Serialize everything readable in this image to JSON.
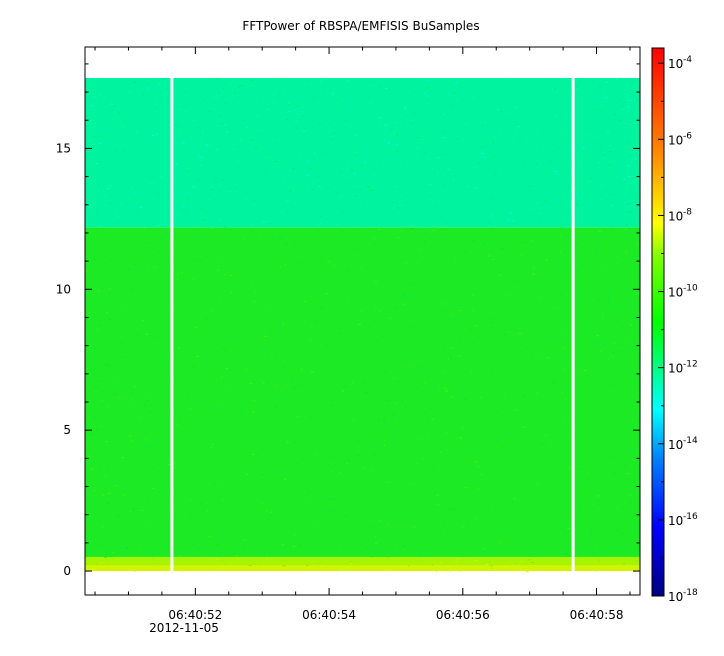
{
  "chart_data": {
    "type": "heatmap",
    "title": "FFTPower of RBSPA/EMFISIS  BuSamples",
    "x_axis": {
      "ticks": [
        "06:40:52",
        "06:40:54",
        "06:40:56",
        "06:40:58"
      ],
      "tick_seconds": [
        52,
        54,
        56,
        58
      ],
      "range_seconds": [
        50.35,
        58.65
      ],
      "date_label": "2012-11-05"
    },
    "y_axis": {
      "ticks": [
        "0",
        "5",
        "10",
        "15"
      ],
      "tick_values": [
        0,
        5,
        10,
        15
      ],
      "range": [
        -0.85,
        18.6
      ],
      "data_range": [
        0,
        17.5
      ]
    },
    "colorbar": {
      "scale": "log",
      "range_exponents": [
        -18,
        -3.6
      ],
      "ticks": [
        {
          "base": "10",
          "exp": "-4",
          "value": -4
        },
        {
          "base": "10",
          "exp": "-6",
          "value": -6
        },
        {
          "base": "10",
          "exp": "-8",
          "value": -8
        },
        {
          "base": "10",
          "exp": "-10",
          "value": -10
        },
        {
          "base": "10",
          "exp": "-12",
          "value": -12
        },
        {
          "base": "10",
          "exp": "-14",
          "value": -14
        },
        {
          "base": "10",
          "exp": "-16",
          "value": -16
        },
        {
          "base": "10",
          "exp": "-18",
          "value": -18
        }
      ]
    },
    "gaps_seconds": [
      51.65,
      57.65
    ],
    "bands": [
      {
        "y": [
          0,
          0.2
        ],
        "log_power": -8.7
      },
      {
        "y": [
          0.2,
          0.5
        ],
        "log_power": -9.2
      },
      {
        "y": [
          0.5,
          12.2
        ],
        "log_power": -10.6
      },
      {
        "y": [
          12.2,
          17.5
        ],
        "log_power": -12.2
      }
    ],
    "colors": {
      "background": "#ffffff",
      "gap": "#ffffff"
    }
  }
}
